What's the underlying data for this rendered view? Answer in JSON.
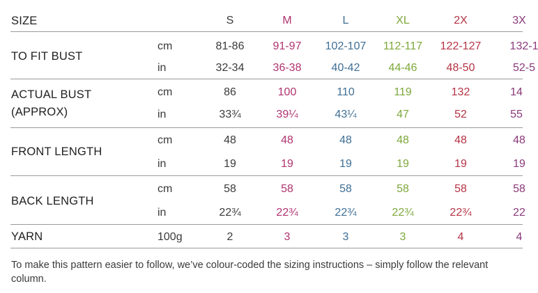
{
  "header": {
    "label": "SIZE",
    "sizes": [
      "S",
      "M",
      "L",
      "XL",
      "2X",
      "3X"
    ]
  },
  "colors": {
    "S": "#3a3a3a",
    "M": "#b0336f",
    "L": "#3f6f94",
    "XL": "#7da83a",
    "2X": "#b53344",
    "3X": "#8a3a7a"
  },
  "rows": [
    {
      "label": [
        "TO FIT BUST"
      ],
      "units": [
        {
          "unit": "cm",
          "values": [
            "81-86",
            "91-97",
            "102-107",
            "112-117",
            "122-127",
            "132-1"
          ]
        },
        {
          "unit": "in",
          "values": [
            "32-34",
            "36-38",
            "40-42",
            "44-46",
            "48-50",
            "52-5"
          ]
        }
      ]
    },
    {
      "label": [
        "ACTUAL BUST",
        "(APPROX)"
      ],
      "units": [
        {
          "unit": "cm",
          "values": [
            "86",
            "100",
            "110",
            "119",
            "132",
            "14"
          ]
        },
        {
          "unit": "in",
          "values": [
            "33¾",
            "39¼",
            "43¼",
            "47",
            "52",
            "55"
          ]
        }
      ]
    },
    {
      "label": [
        "FRONT LENGTH"
      ],
      "units": [
        {
          "unit": "cm",
          "values": [
            "48",
            "48",
            "48",
            "48",
            "48",
            "48"
          ]
        },
        {
          "unit": "in",
          "values": [
            "19",
            "19",
            "19",
            "19",
            "19",
            "19"
          ]
        }
      ]
    },
    {
      "label": [
        "BACK LENGTH"
      ],
      "units": [
        {
          "unit": "cm",
          "values": [
            "58",
            "58",
            "58",
            "58",
            "58",
            "58"
          ]
        },
        {
          "unit": "in",
          "values": [
            "22¾",
            "22¾",
            "22¾",
            "22¾",
            "22¾",
            "22"
          ]
        }
      ]
    },
    {
      "label": [
        "YARN"
      ],
      "units": [
        {
          "unit": "100g",
          "values": [
            "2",
            "3",
            "3",
            "3",
            "4",
            "4"
          ]
        }
      ]
    }
  ],
  "footnote": "To make this pattern easier to follow, we’ve colour-coded the sizing instructions – simply follow the relevant column."
}
